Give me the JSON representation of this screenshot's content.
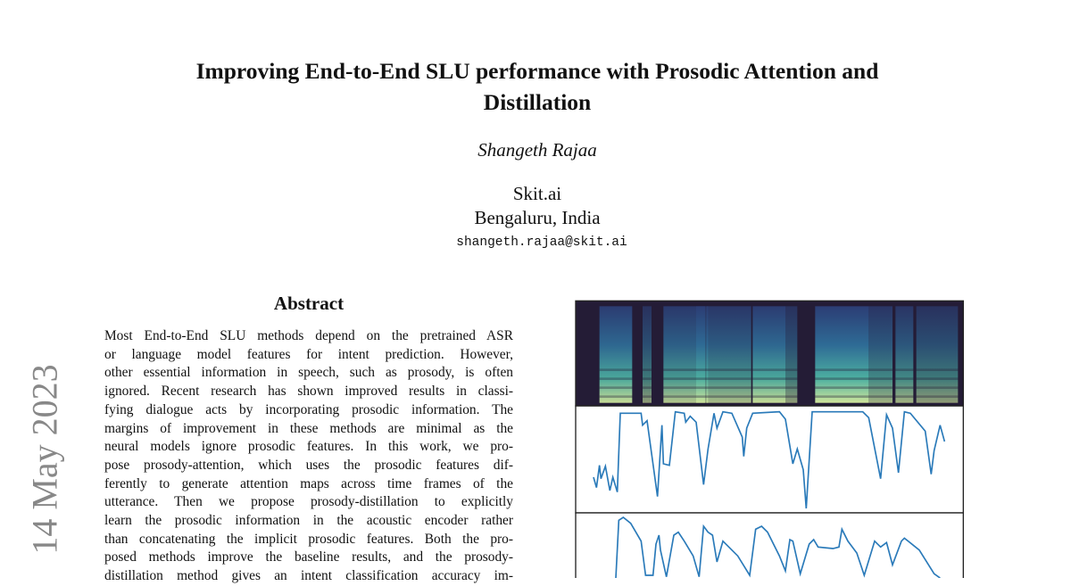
{
  "paper": {
    "title_lines": [
      "Improving End-to-End SLU performance with Prosodic Attention and",
      "Distillation"
    ],
    "author": "Shangeth Rajaa",
    "affiliation": [
      "Skit.ai",
      "Bengaluru, India"
    ],
    "email": "shangeth.rajaa@skit.ai",
    "arxiv_date_stamp": "14 May 2023",
    "abstract": {
      "heading": "Abstract",
      "lines": [
        "Most End-to-End SLU methods depend on the pretrained ASR",
        "or language model features for intent prediction.  However,",
        "other essential information in speech, such as prosody, is often",
        "ignored. Recent research has shown improved results in classi-",
        "fying dialogue acts by incorporating prosodic information. The",
        "margins of improvement in these methods are minimal as the",
        "neural models ignore prosodic features.  In this work, we pro-",
        "pose prosody-attention, which uses the prosodic features dif-",
        "ferently to generate attention maps across time frames of the",
        "utterance.  Then we propose prosody-distillation to explicitly",
        "learn the prosodic information in the acoustic encoder rather",
        "than concatenating the implicit prosodic features. Both the pro-",
        "posed methods improve the baseline results, and the prosody-",
        "distillation method gives an intent classification accuracy im-"
      ]
    },
    "figure": {
      "line_color": "#2a7ab9",
      "spectrogram_bg": "#241c36"
    }
  }
}
